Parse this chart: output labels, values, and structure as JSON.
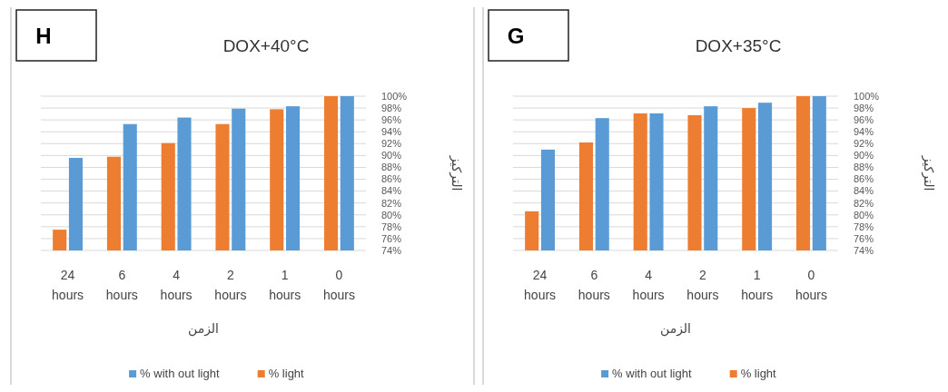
{
  "chart_data": [
    {
      "type": "bar",
      "title": "DOX+40°C",
      "annotations": [
        "H"
      ],
      "xlabel": "الزمن",
      "ylabel": "التركيز",
      "categories": [
        "24 hours",
        "6 hours",
        "4 hours",
        "2 hours",
        "1 hours",
        "0 hours"
      ],
      "series": [
        {
          "name": "% with out light",
          "color": "#5b9bd5",
          "values": [
            89.6,
            95.3,
            96.4,
            97.9,
            98.3,
            100
          ]
        },
        {
          "name": "% light",
          "color": "#ed7d31",
          "values": [
            77.5,
            89.8,
            92.1,
            95.3,
            97.8,
            100
          ]
        }
      ],
      "ylim": [
        74,
        100
      ],
      "yticks": [
        {
          "value": 74,
          "label": "74%"
        },
        {
          "value": 76,
          "label": "76%"
        },
        {
          "value": 78,
          "label": "78%"
        },
        {
          "value": 80,
          "label": "80%"
        },
        {
          "value": 82,
          "label": "82%"
        },
        {
          "value": 84,
          "label": "84%"
        },
        {
          "value": 86,
          "label": "86%"
        },
        {
          "value": 88,
          "label": "88%"
        },
        {
          "value": 90,
          "label": "90%"
        },
        {
          "value": 92,
          "label": "92%"
        },
        {
          "value": 94,
          "label": "94%"
        },
        {
          "value": 96,
          "label": "96%"
        },
        {
          "value": 98,
          "label": "98%"
        },
        {
          "value": 100,
          "label": "100%"
        }
      ],
      "grid": "y",
      "legend": "bottom"
    },
    {
      "type": "bar",
      "title": "DOX+35°C",
      "annotations": [
        "G"
      ],
      "xlabel": "الزمن",
      "ylabel": "التركيز",
      "categories": [
        "24 hours",
        "6 hours",
        "4 hours",
        "2 hours",
        "1 hours",
        "0 hours"
      ],
      "series": [
        {
          "name": "% with out light",
          "color": "#5b9bd5",
          "values": [
            91.0,
            96.3,
            97.1,
            98.3,
            98.9,
            100
          ]
        },
        {
          "name": "% light",
          "color": "#ed7d31",
          "values": [
            80.6,
            92.2,
            97.1,
            96.8,
            98.0,
            100
          ]
        }
      ],
      "ylim": [
        74,
        100
      ],
      "yticks": [
        {
          "value": 74,
          "label": "74%"
        },
        {
          "value": 76,
          "label": "76%"
        },
        {
          "value": 78,
          "label": "78%"
        },
        {
          "value": 80,
          "label": "80%"
        },
        {
          "value": 82,
          "label": "82%"
        },
        {
          "value": 84,
          "label": "84%"
        },
        {
          "value": 86,
          "label": "86%"
        },
        {
          "value": 88,
          "label": "88%"
        },
        {
          "value": 90,
          "label": "90%"
        },
        {
          "value": 92,
          "label": "92%"
        },
        {
          "value": 94,
          "label": "94%"
        },
        {
          "value": 96,
          "label": "96%"
        },
        {
          "value": 98,
          "label": "98%"
        },
        {
          "value": 100,
          "label": "100%"
        }
      ],
      "grid": "y",
      "legend": "bottom"
    }
  ]
}
